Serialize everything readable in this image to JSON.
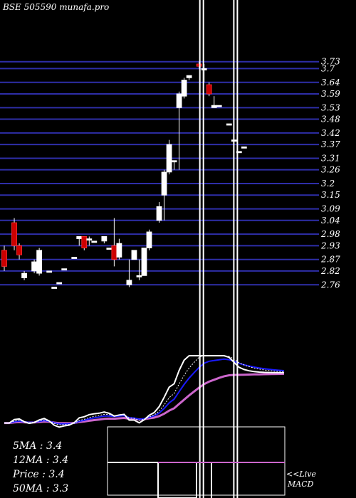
{
  "header": {
    "title": "BSE 505590  munafa.pro"
  },
  "chart_data": {
    "type": "candlestick",
    "y_ticks": [
      3.73,
      3.7,
      3.64,
      3.59,
      3.53,
      3.48,
      3.42,
      3.37,
      3.31,
      3.26,
      3.2,
      3.15,
      3.09,
      3.04,
      2.98,
      2.93,
      2.87,
      2.82,
      2.76
    ],
    "ylim": [
      2.73,
      3.76
    ],
    "x_count": 60,
    "candles": [
      {
        "i": 0,
        "o": 2.91,
        "c": 2.84,
        "h": 2.93,
        "l": 2.82,
        "bull": false
      },
      {
        "i": 2,
        "o": 3.03,
        "c": 2.93,
        "h": 3.05,
        "l": 2.91,
        "bull": false
      },
      {
        "i": 3,
        "o": 2.93,
        "c": 2.89,
        "h": 2.94,
        "l": 2.87,
        "bull": false
      },
      {
        "i": 4,
        "o": 2.79,
        "c": 2.81,
        "h": 2.82,
        "l": 2.78,
        "bull": true
      },
      {
        "i": 6,
        "o": 2.82,
        "c": 2.86,
        "h": 2.87,
        "l": 2.81,
        "bull": true
      },
      {
        "i": 7,
        "o": 2.81,
        "c": 2.91,
        "h": 2.92,
        "l": 2.8,
        "bull": true
      },
      {
        "i": 9,
        "o": 2.82,
        "c": 2.82,
        "h": 2.82,
        "l": 2.82,
        "bull": true
      },
      {
        "i": 10,
        "o": 2.75,
        "c": 2.75,
        "h": 2.75,
        "l": 2.75,
        "bull": true
      },
      {
        "i": 11,
        "o": 2.77,
        "c": 2.77,
        "h": 2.77,
        "l": 2.77,
        "bull": true
      },
      {
        "i": 12,
        "o": 2.83,
        "c": 2.83,
        "h": 2.83,
        "l": 2.83,
        "bull": true
      },
      {
        "i": 14,
        "o": 2.88,
        "c": 2.88,
        "h": 2.88,
        "l": 2.88,
        "bull": true
      },
      {
        "i": 15,
        "o": 2.96,
        "c": 2.97,
        "h": 2.97,
        "l": 2.93,
        "bull": true
      },
      {
        "i": 16,
        "o": 2.97,
        "c": 2.92,
        "h": 2.97,
        "l": 2.91,
        "bull": false
      },
      {
        "i": 17,
        "o": 2.96,
        "c": 2.96,
        "h": 2.97,
        "l": 2.93,
        "bull": true
      },
      {
        "i": 18,
        "o": 2.95,
        "c": 2.95,
        "h": 2.95,
        "l": 2.95,
        "bull": true
      },
      {
        "i": 20,
        "o": 2.95,
        "c": 2.97,
        "h": 2.97,
        "l": 2.94,
        "bull": true
      },
      {
        "i": 21,
        "o": 2.92,
        "c": 2.92,
        "h": 2.92,
        "l": 2.92,
        "bull": true
      },
      {
        "i": 22,
        "o": 2.93,
        "c": 2.87,
        "h": 3.05,
        "l": 2.84,
        "bull": false
      },
      {
        "i": 23,
        "o": 2.88,
        "c": 2.94,
        "h": 2.96,
        "l": 2.87,
        "bull": true
      },
      {
        "i": 25,
        "o": 2.76,
        "c": 2.78,
        "h": 2.87,
        "l": 2.75,
        "bull": true
      },
      {
        "i": 26,
        "o": 2.91,
        "c": 2.87,
        "h": 2.91,
        "l": 2.87,
        "bull": true
      },
      {
        "i": 27,
        "o": 2.8,
        "c": 2.8,
        "h": 2.87,
        "l": 2.78,
        "bull": true
      },
      {
        "i": 28,
        "o": 2.8,
        "c": 2.92,
        "h": 2.92,
        "l": 2.8,
        "bull": true
      },
      {
        "i": 29,
        "o": 2.92,
        "c": 2.99,
        "h": 3.0,
        "l": 2.91,
        "bull": true
      },
      {
        "i": 31,
        "o": 3.04,
        "c": 3.1,
        "h": 3.12,
        "l": 3.03,
        "bull": true
      },
      {
        "i": 32,
        "o": 3.15,
        "c": 3.25,
        "h": 3.26,
        "l": 3.04,
        "bull": true
      },
      {
        "i": 33,
        "o": 3.25,
        "c": 3.37,
        "h": 3.39,
        "l": 3.24,
        "bull": true
      },
      {
        "i": 34,
        "o": 3.3,
        "c": 3.3,
        "h": 3.3,
        "l": 3.26,
        "bull": true
      },
      {
        "i": 35,
        "o": 3.53,
        "c": 3.59,
        "h": 3.6,
        "l": 3.26,
        "bull": true
      },
      {
        "i": 36,
        "o": 3.58,
        "c": 3.65,
        "h": 3.66,
        "l": 3.57,
        "bull": true
      },
      {
        "i": 37,
        "o": 3.66,
        "c": 3.67,
        "h": 3.67,
        "l": 3.65,
        "bull": true
      },
      {
        "i": 39,
        "o": 3.72,
        "c": 3.71,
        "h": 3.73,
        "l": 3.7,
        "bull": false
      },
      {
        "i": 40,
        "o": 3.7,
        "c": 3.7,
        "h": 3.72,
        "l": 3.64,
        "bull": true
      },
      {
        "i": 41,
        "o": 3.63,
        "c": 3.59,
        "h": 3.64,
        "l": 3.58,
        "bull": false
      },
      {
        "i": 42,
        "o": 3.54,
        "c": 3.53,
        "h": 3.58,
        "l": 3.53,
        "bull": true
      },
      {
        "i": 43,
        "o": 3.54,
        "c": 3.54,
        "h": 3.54,
        "l": 3.54,
        "bull": true
      },
      {
        "i": 45,
        "o": 3.46,
        "c": 3.46,
        "h": 3.46,
        "l": 3.46,
        "bull": true
      },
      {
        "i": 46,
        "o": 3.39,
        "c": 3.39,
        "h": 3.39,
        "l": 3.39,
        "bull": true
      },
      {
        "i": 47,
        "o": 3.34,
        "c": 3.34,
        "h": 3.34,
        "l": 3.34,
        "bull": true
      },
      {
        "i": 48,
        "o": 3.36,
        "c": 3.36,
        "h": 3.36,
        "l": 3.36,
        "bull": true
      }
    ],
    "vertical_markers": [
      39.5,
      46.3
    ],
    "legend": {
      "ma5": "5MA : 3.4",
      "ma12": "12MA : 3.4",
      "price": "Price   : 3.4",
      "ma50": "50MA : 3.3"
    },
    "macd_label_1": "<<Live",
    "macd_label_2": "MACD",
    "colors": {
      "bull": "#ffffff",
      "bear": "#cc0000",
      "grid": "#2e2ea8",
      "ma_slow": "#cc66cc",
      "ma_mid": "#1a1aff",
      "ma_fast": "#ffffff"
    }
  }
}
